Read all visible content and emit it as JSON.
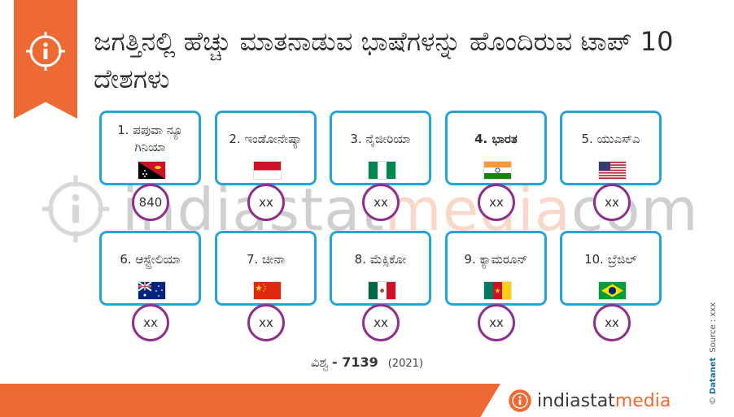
{
  "title": "ಜಗತ್ತಿನಲ್ಲಿ ಹೆಚ್ಚು ಮಾತನಾಡುವ ಭಾಷೆಗಳನ್ನು ಹೊಂದಿರುವ ಟಾಪ್ 10 ದೇಶಗಳು",
  "colors": {
    "accent": "#ee6a34",
    "card_border": "#27a4d8",
    "circle_border": "#8e2f8c"
  },
  "ribbon_icon": "info-icon",
  "countries": [
    {
      "name": "1. ಪಪುವಾ ನ್ಯೂ ಗಿನಿಯಾ",
      "flag": "papua-new-guinea-flag",
      "value": "840"
    },
    {
      "name": "2. ಇಂಡೋನೇಷ್ಯಾ",
      "flag": "indonesia-flag",
      "value": "xx"
    },
    {
      "name": "3. ನೈಜೀರಿಯಾ",
      "flag": "nigeria-flag",
      "value": "xx"
    },
    {
      "name": "4. ಭಾರತ",
      "flag": "india-flag",
      "value": "xx"
    },
    {
      "name": "5. ಯುಎಸ್ಎ",
      "flag": "usa-flag",
      "value": "xx"
    },
    {
      "name": "6. ಆಸ್ಟ್ರೇಲಿಯಾ",
      "flag": "australia-flag",
      "value": "xx"
    },
    {
      "name": "7. ಚೀನಾ",
      "flag": "china-flag",
      "value": "xx"
    },
    {
      "name": "8. ಮೆಕ್ಸಿಕೋ",
      "flag": "mexico-flag",
      "value": "xx"
    },
    {
      "name": "9. ಕ್ಯಾಮರೂನ್",
      "flag": "cameroon-flag",
      "value": "xx"
    },
    {
      "name": "10. ಬ್ರೆಜಿಲ್",
      "flag": "brazil-flag",
      "value": "xx"
    }
  ],
  "world": {
    "label": "ವಿಶ್ವ",
    "value": "- 7139",
    "year": "(2021)"
  },
  "watermark": {
    "part1": "indiastat",
    "part2": "media",
    "part3": "com"
  },
  "brand": {
    "part1": "indiastat",
    "part2": "media"
  },
  "source": {
    "copyright": "©",
    "brand": "Datanet",
    "text": "Source : xxx"
  }
}
